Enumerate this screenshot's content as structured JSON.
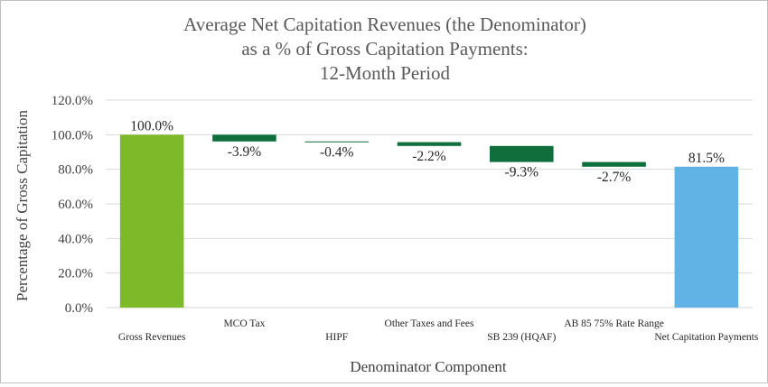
{
  "chart_data": {
    "type": "bar",
    "subtype": "waterfall",
    "title": [
      "Average Net Capitation Revenues (the Denominator)",
      "as a % of Gross Capitation Payments:",
      "12-Month Period"
    ],
    "xlabel": "Denominator Component",
    "ylabel": "Percentage of Gross Capitation",
    "ylim": [
      0,
      120
    ],
    "yticks": [
      "0.0%",
      "20.0%",
      "40.0%",
      "60.0%",
      "80.0%",
      "100.0%",
      "120.0%"
    ],
    "grid": true,
    "categories": [
      "Gross Revenues",
      "MCO Tax",
      "HIPF",
      "Other Taxes and Fees",
      "SB 239 (HQAF)",
      "AB 85 75% Rate Range",
      "Net Capitation Payments"
    ],
    "values": [
      100.0,
      -3.9,
      -0.4,
      -2.2,
      -9.3,
      -2.7,
      81.5
    ],
    "kinds": [
      "total",
      "delta",
      "delta",
      "delta",
      "delta",
      "delta",
      "total"
    ],
    "labels": [
      "100.0%",
      "-3.9%",
      "-0.4%",
      "-2.2%",
      "-9.3%",
      "-2.7%",
      "81.5%"
    ],
    "colors": {
      "start_total": "#7db928",
      "decrease": "#0f6e3c",
      "end_total": "#62b3e5"
    }
  }
}
